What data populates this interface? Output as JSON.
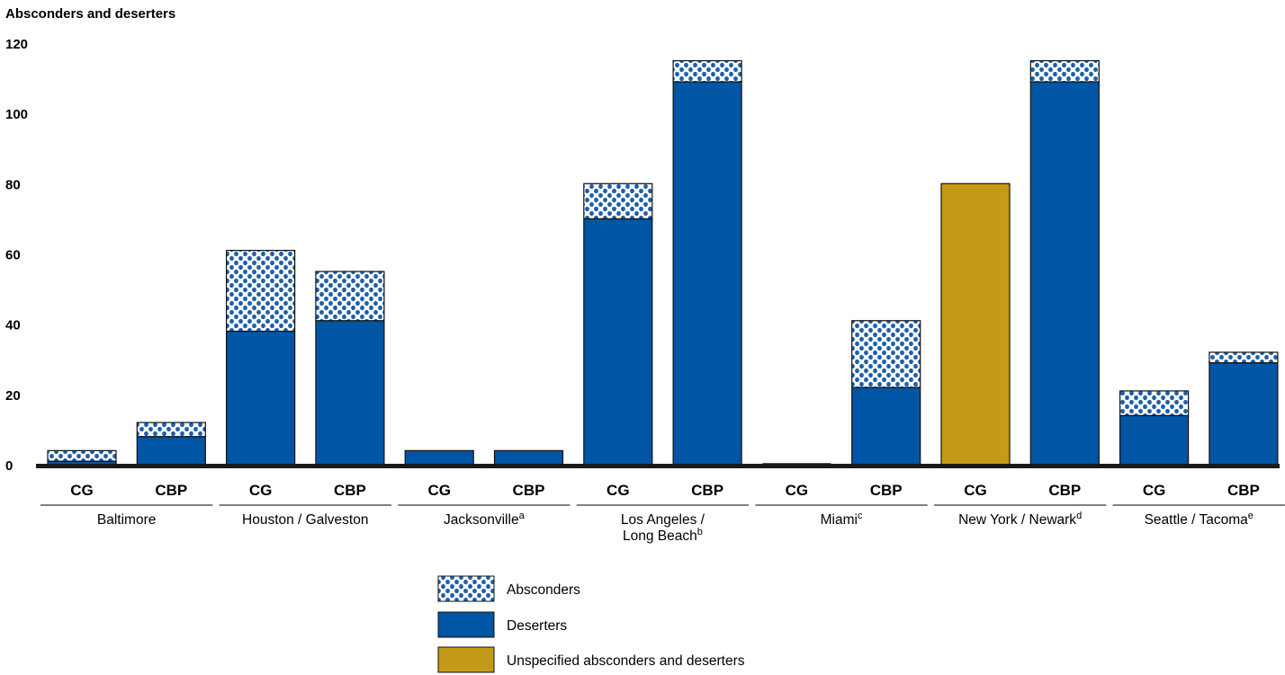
{
  "chart_data": {
    "type": "bar",
    "stacked": true,
    "ylabel": "Absconders and deserters",
    "ylim": [
      0,
      120
    ],
    "yticks": [
      0,
      20,
      40,
      60,
      80,
      100,
      120
    ],
    "grid": false,
    "legend_position": "bottom-center",
    "categories": [
      {
        "group": "Baltimore",
        "sup": "",
        "sub": "CG"
      },
      {
        "group": "Baltimore",
        "sup": "",
        "sub": "CBP"
      },
      {
        "group": "Houston / Galveston",
        "sup": "",
        "sub": "CG"
      },
      {
        "group": "Houston / Galveston",
        "sup": "",
        "sub": "CBP"
      },
      {
        "group": "Jacksonville",
        "sup": "a",
        "sub": "CG"
      },
      {
        "group": "Jacksonville",
        "sup": "a",
        "sub": "CBP"
      },
      {
        "group": "Los Angeles / Long Beach",
        "sup": "b",
        "sub": "CG"
      },
      {
        "group": "Los Angeles / Long Beach",
        "sup": "b",
        "sub": "CBP"
      },
      {
        "group": "Miami",
        "sup": "c",
        "sub": "CG"
      },
      {
        "group": "Miami",
        "sup": "c",
        "sub": "CBP"
      },
      {
        "group": "New York / Newark",
        "sup": "d",
        "sub": "CG"
      },
      {
        "group": "New York / Newark",
        "sup": "d",
        "sub": "CBP"
      },
      {
        "group": "Seattle / Tacoma",
        "sup": "e",
        "sub": "CG"
      },
      {
        "group": "Seattle / Tacoma",
        "sup": "e",
        "sub": "CBP"
      }
    ],
    "groups": [
      {
        "lines": [
          "Baltimore"
        ],
        "sup": ""
      },
      {
        "lines": [
          "Houston / Galveston"
        ],
        "sup": ""
      },
      {
        "lines": [
          "Jacksonville"
        ],
        "sup": "a"
      },
      {
        "lines": [
          "Los Angeles /",
          "Long Beach"
        ],
        "sup": "b"
      },
      {
        "lines": [
          "Miami"
        ],
        "sup": "c"
      },
      {
        "lines": [
          "New York / Newark"
        ],
        "sup": "d"
      },
      {
        "lines": [
          "Seattle / Tacoma"
        ],
        "sup": "e"
      }
    ],
    "series": [
      {
        "name": "Deserters",
        "color": "#0055a5",
        "values": [
          1,
          8,
          38,
          41,
          4,
          4,
          70,
          109,
          0,
          22,
          0,
          109,
          14,
          29
        ]
      },
      {
        "name": "Absconders",
        "color": "#0055a5",
        "pattern": "dots",
        "values": [
          3,
          4,
          23,
          14,
          0,
          0,
          10,
          6,
          0,
          19,
          0,
          6,
          7,
          3
        ]
      },
      {
        "name": "Unspecified absconders and deserters",
        "color": "#c49a18",
        "values": [
          0,
          0,
          0,
          0,
          0,
          0,
          0,
          0,
          0,
          0,
          80,
          0,
          0,
          0
        ]
      }
    ],
    "legend": [
      {
        "name": "Absconders",
        "fill": "dots"
      },
      {
        "name": "Deserters",
        "fill": "#0055a5"
      },
      {
        "name": "Unspecified absconders and deserters",
        "fill": "#c49a18"
      }
    ]
  }
}
